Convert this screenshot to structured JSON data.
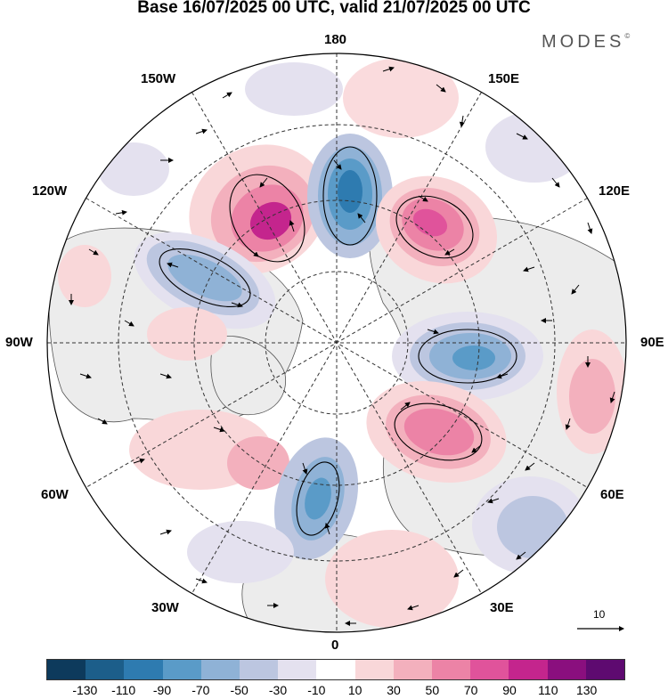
{
  "title": "Base 16/07/2025 00 UTC, valid 21/07/2025 00 UTC",
  "brand": "MODES",
  "brand_mark": "©",
  "longitude_labels": {
    "lon_180": "180",
    "lon_150e": "150E",
    "lon_120e": "120E",
    "lon_90e": "90E",
    "lon_60e": "60E",
    "lon_30e": "30E",
    "lon_0": "0",
    "lon_30w": "30W",
    "lon_60w": "60W",
    "lon_90w": "90W",
    "lon_120w": "120W",
    "lon_150w": "150W"
  },
  "vector_scale_label": "10",
  "colorbar": {
    "colors": [
      "#0d3a5c",
      "#1c5e8a",
      "#2e7bb0",
      "#5a9bc8",
      "#8fb2d6",
      "#bcc6e0",
      "#e4e1ef",
      "#ffffff",
      "#f9d7d9",
      "#f3b0bd",
      "#ec83a6",
      "#e0539b",
      "#c4258d",
      "#8a0f7e",
      "#5e0a70"
    ],
    "tick_labels": [
      "-130",
      "-110",
      "-90",
      "-70",
      "-50",
      "-30",
      "-10",
      "10",
      "30",
      "50",
      "70",
      "90",
      "110",
      "130"
    ]
  }
}
